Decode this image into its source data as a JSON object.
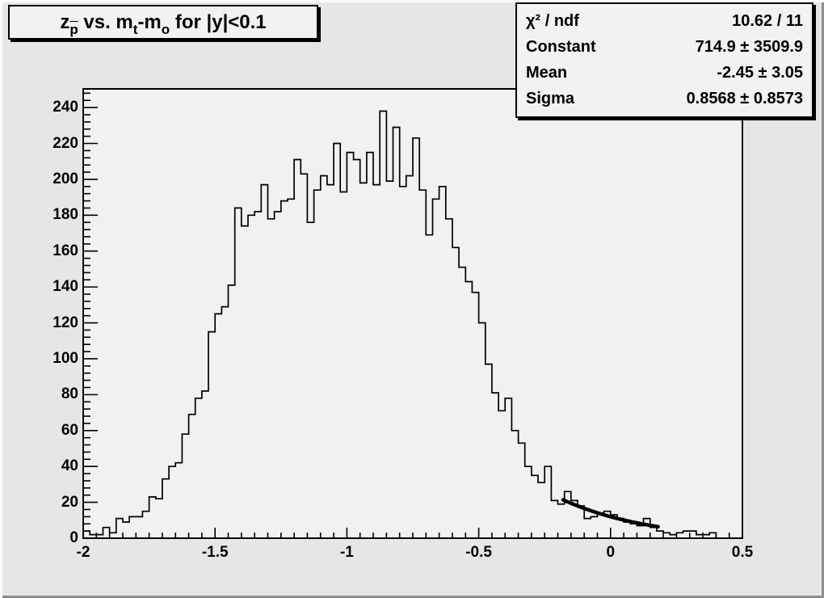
{
  "title": {
    "parts": [
      {
        "text": "z"
      },
      {
        "text": "p",
        "sub": true,
        "bar": true
      },
      {
        "text": " vs. m"
      },
      {
        "text": "t",
        "sub": true
      },
      {
        "text": "-m"
      },
      {
        "text": "o",
        "sub": true
      },
      {
        "text": " for |y|<0.1"
      }
    ]
  },
  "stats": {
    "rows": [
      {
        "label": "χ² / ndf",
        "value": "10.62 / 11"
      },
      {
        "label": "Constant",
        "value": "714.9 ± 3509.9"
      },
      {
        "label": "Mean",
        "value": "-2.45 ± 3.05"
      },
      {
        "label": "Sigma",
        "value": "0.8568 ± 0.8573"
      }
    ]
  },
  "colors": {
    "canvas_bg": "#e6e6e6",
    "frame_bg": "#f1f1f1",
    "box_bg": "#f2f2f2",
    "line": "#000000",
    "bevel_light": "#fbfbfb",
    "bevel_dark": "#8f8f8f"
  },
  "chart_data": {
    "type": "bar",
    "subtype": "histogram-outline",
    "title": "z_p̄ vs. m_t-m_o for |y|<0.1",
    "xlabel": "",
    "ylabel": "",
    "xlim": [
      -2,
      0.5
    ],
    "ylim": [
      0,
      250.4
    ],
    "grid": false,
    "x_axis": {
      "major_step": 0.5,
      "minor_step": 0.05,
      "tick_values": [
        -2,
        -1.5,
        -1,
        -0.5,
        0,
        0.5
      ],
      "tick_labels": [
        "-2",
        "-1.5",
        "-1",
        "-0.5",
        "0",
        "0.5"
      ]
    },
    "y_axis": {
      "major_step": 20,
      "minor_step": 4,
      "tick_values": [
        0,
        20,
        40,
        60,
        80,
        100,
        120,
        140,
        160,
        180,
        200,
        220,
        240
      ]
    },
    "bins": {
      "x_start": -2,
      "width": 0.025,
      "values": [
        4,
        2,
        2,
        6,
        3,
        11,
        9,
        12,
        12,
        15,
        23,
        22,
        33,
        40,
        42,
        58,
        69,
        78,
        82,
        115,
        125,
        129,
        141,
        184,
        174,
        180,
        182,
        197,
        178,
        182,
        188,
        189,
        211,
        203,
        176,
        194,
        202,
        197,
        220,
        193,
        215,
        211,
        198,
        215,
        197,
        238,
        199,
        229,
        196,
        202,
        223,
        194,
        169,
        189,
        196,
        178,
        162,
        151,
        143,
        137,
        120,
        97,
        81,
        71,
        78,
        60,
        53,
        40,
        35,
        31,
        40,
        21,
        19,
        26,
        21,
        18,
        11,
        12,
        14,
        15,
        13,
        11,
        9,
        8,
        7,
        11,
        6,
        4,
        3,
        2,
        3,
        4,
        4,
        2,
        2,
        3,
        0,
        0,
        0,
        0
      ]
    },
    "fit": {
      "type": "gaussian",
      "constant": 714.9,
      "mean": -2.45,
      "sigma": 0.8568,
      "x_range": [
        -0.18,
        0.18
      ]
    }
  }
}
